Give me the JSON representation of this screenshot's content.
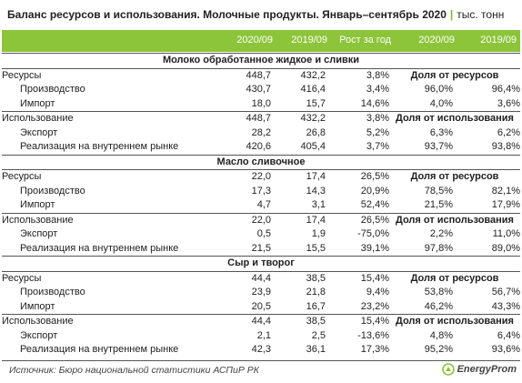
{
  "title": {
    "main": "Баланс ресурсов и использования. Молочные продукты. Январь–сентябрь 2020",
    "separator": "|",
    "unit": "тыс. тонн"
  },
  "header": {
    "col1": "2020/09",
    "col2": "2019/09",
    "col3": "Рост за год",
    "col4": "2020/09",
    "col5": "2019/09"
  },
  "sections": [
    {
      "name": "Молоко обработанное жидкое и сливки",
      "rows": [
        {
          "label": "Ресурсы",
          "v2020": "448,7",
          "v2019": "432,2",
          "growth": "3,8%",
          "share_label": "Доля от ресурсов"
        },
        {
          "label": "Производство",
          "v2020": "430,7",
          "v2019": "416,4",
          "growth": "3,4%",
          "s2020": "96,0%",
          "s2019": "96,4%"
        },
        {
          "label": "Импорт",
          "v2020": "18,0",
          "v2019": "15,7",
          "growth": "14,6%",
          "s2020": "4,0%",
          "s2019": "3,6%"
        },
        {
          "label": "Использование",
          "v2020": "448,7",
          "v2019": "432,2",
          "growth": "3,8%",
          "share_label": "Доля от использования"
        },
        {
          "label": "Экспорт",
          "v2020": "28,2",
          "v2019": "26,8",
          "growth": "5,2%",
          "s2020": "6,3%",
          "s2019": "6,2%"
        },
        {
          "label": "Реализация на внутреннем рынке",
          "v2020": "420,6",
          "v2019": "405,4",
          "growth": "3,7%",
          "s2020": "93,7%",
          "s2019": "93,8%"
        }
      ]
    },
    {
      "name": "Масло сливочное",
      "rows": [
        {
          "label": "Ресурсы",
          "v2020": "22,0",
          "v2019": "17,4",
          "growth": "26,5%",
          "share_label": "Доля от ресурсов"
        },
        {
          "label": "Производство",
          "v2020": "17,3",
          "v2019": "14,3",
          "growth": "20,9%",
          "s2020": "78,5%",
          "s2019": "82,1%"
        },
        {
          "label": "Импорт",
          "v2020": "4,7",
          "v2019": "3,1",
          "growth": "52,4%",
          "s2020": "21,5%",
          "s2019": "17,9%"
        },
        {
          "label": "Использование",
          "v2020": "22,0",
          "v2019": "17,4",
          "growth": "26,5%",
          "share_label": "Доля от использования"
        },
        {
          "label": "Экспорт",
          "v2020": "0,5",
          "v2019": "1,9",
          "growth": "-75,0%",
          "s2020": "2,2%",
          "s2019": "11,0%"
        },
        {
          "label": "Реализация на внутреннем рынке",
          "v2020": "21,5",
          "v2019": "15,5",
          "growth": "39,1%",
          "s2020": "97,8%",
          "s2019": "89,0%"
        }
      ]
    },
    {
      "name": "Сыр и творог",
      "rows": [
        {
          "label": "Ресурсы",
          "v2020": "44,4",
          "v2019": "38,5",
          "growth": "15,4%",
          "share_label": "Доля от ресурсов"
        },
        {
          "label": "Производство",
          "v2020": "23,9",
          "v2019": "21,8",
          "growth": "9,4%",
          "s2020": "53,8%",
          "s2019": "56,7%"
        },
        {
          "label": "Импорт",
          "v2020": "20,5",
          "v2019": "16,7",
          "growth": "23,2%",
          "s2020": "46,2%",
          "s2019": "43,3%"
        },
        {
          "label": "Использование",
          "v2020": "44,4",
          "v2019": "38,5",
          "growth": "15,4%",
          "share_label": "Доля от использования"
        },
        {
          "label": "Экспорт",
          "v2020": "2,1",
          "v2019": "2,5",
          "growth": "-13,6%",
          "s2020": "4,8%",
          "s2019": "6,4%"
        },
        {
          "label": "Реализация на внутреннем рынке",
          "v2020": "42,3",
          "v2019": "36,1",
          "growth": "17,3%",
          "s2020": "95,2%",
          "s2019": "93,6%"
        }
      ]
    }
  ],
  "footer": {
    "source": "Источник: Бюро национальной статистики АСПиР РК",
    "logo_text": "EnergyProm",
    "logo_icon": "energyprom-logo-icon",
    "accent_color": "#8cc43a"
  }
}
